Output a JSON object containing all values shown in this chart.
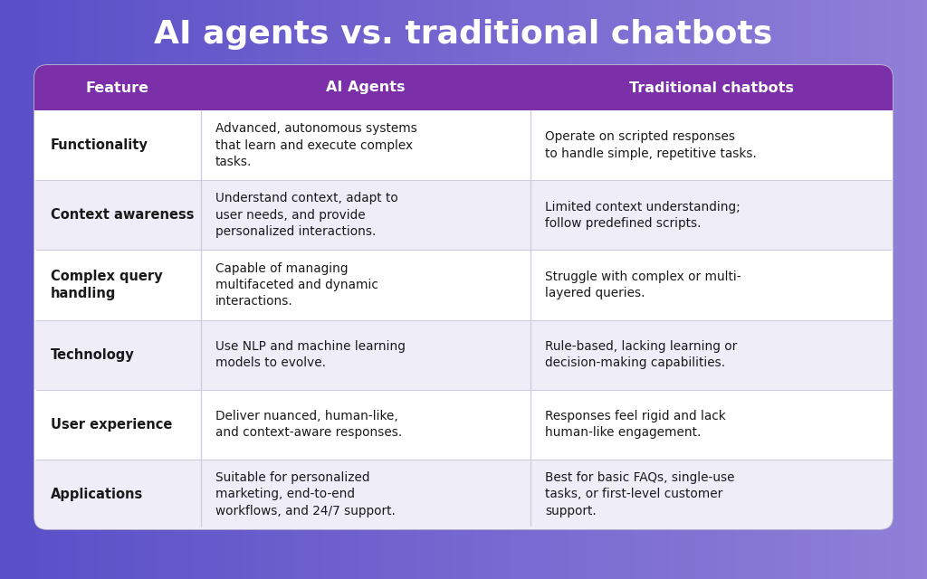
{
  "title": "AI agents vs. traditional chatbots",
  "title_color": "#ffffff",
  "title_fontsize": 26,
  "header_bg_color": "#7b2fa8",
  "header_text_color": "#ffffff",
  "row_alt_color": "#eeedf8",
  "row_normal_color": "#ffffff",
  "col_header": "Feature",
  "col_ai": "AI Agents",
  "col_trad": "Traditional chatbots",
  "rows": [
    {
      "feature": "Functionality",
      "ai": "Advanced, autonomous systems\nthat learn and execute complex\ntasks.",
      "traditional": "Operate on scripted responses\nto handle simple, repetitive tasks."
    },
    {
      "feature": "Context awareness",
      "ai": "Understand context, adapt to\nuser needs, and provide\npersonalized interactions.",
      "traditional": "Limited context understanding;\nfollow predefined scripts."
    },
    {
      "feature": "Complex query\nhandling",
      "ai": "Capable of managing\nmultifaceted and dynamic\ninteractions.",
      "traditional": "Struggle with complex or multi-\nlayered queries."
    },
    {
      "feature": "Technology",
      "ai": "Use NLP and machine learning\nmodels to evolve.",
      "traditional": "Rule-based, lacking learning or\ndecision-making capabilities."
    },
    {
      "feature": "User experience",
      "ai": "Deliver nuanced, human-like,\nand context-aware responses.",
      "traditional": "Responses feel rigid and lack\nhuman-like engagement."
    },
    {
      "feature": "Applications",
      "ai": "Suitable for personalized\nmarketing, end-to-end\nworkflows, and 24/7 support.",
      "traditional": "Best for basic FAQs, single-use\ntasks, or first-level customer\nsupport."
    }
  ],
  "bg_left": "#5a4fc8",
  "bg_right": "#9080d8",
  "feature_fontsize": 10.5,
  "cell_fontsize": 9.8,
  "header_fontsize": 11.5
}
